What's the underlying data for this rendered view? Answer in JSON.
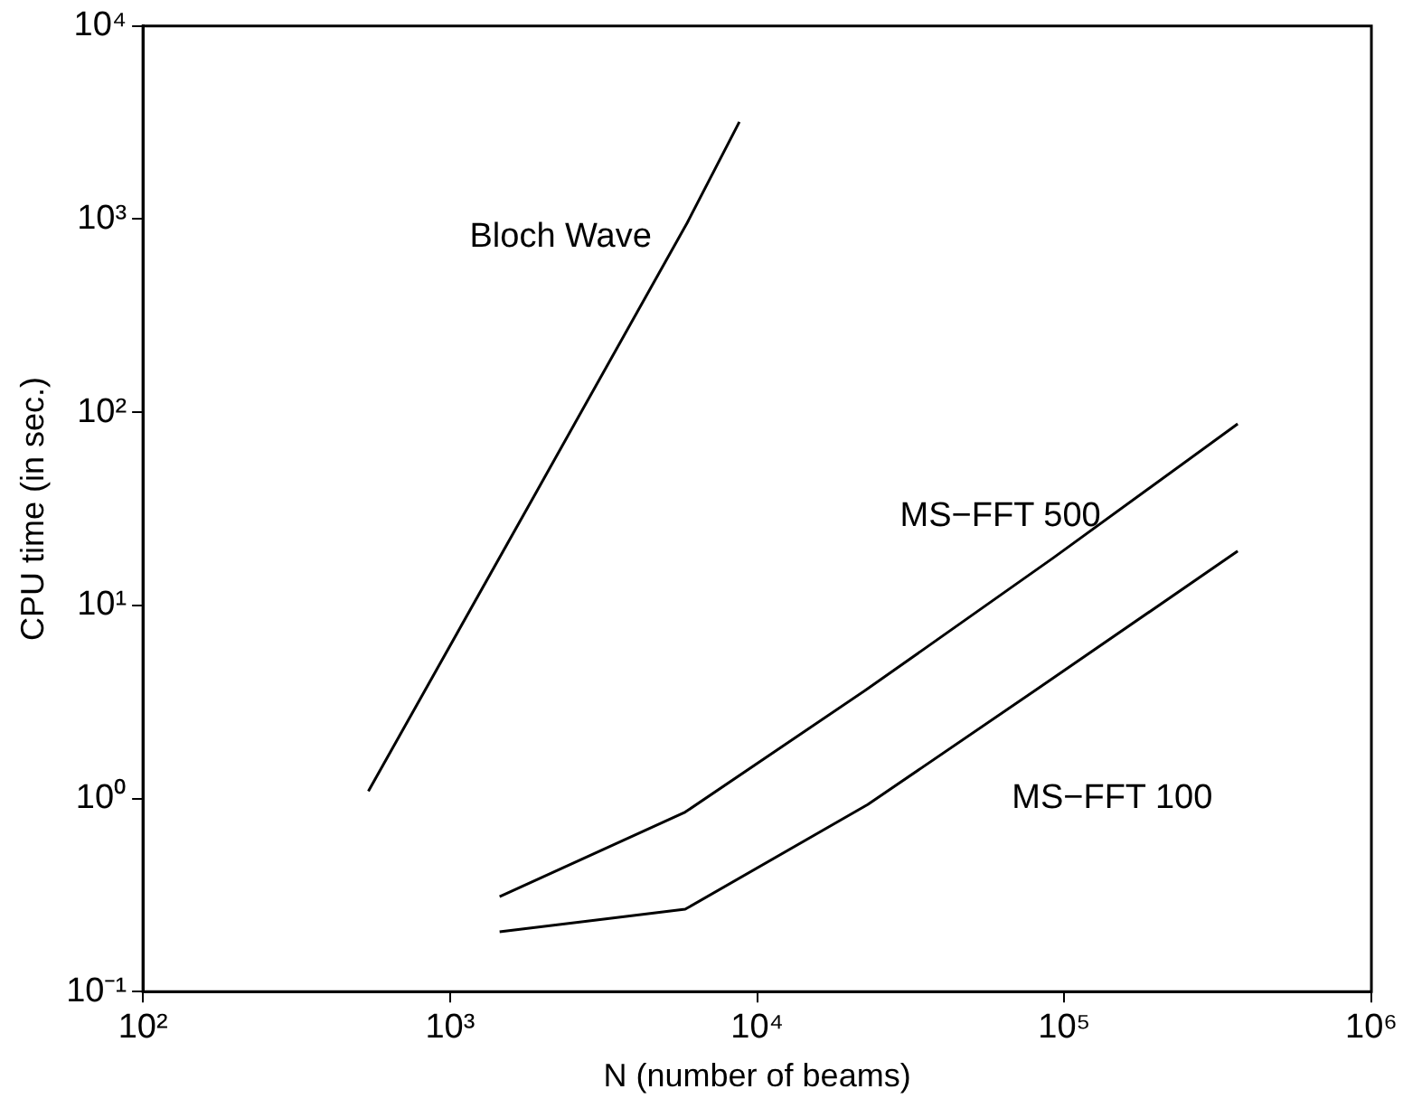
{
  "chart_data": {
    "type": "line",
    "xlabel": "N (number of beams)",
    "ylabel": "CPU time (in sec.)",
    "log": "xy",
    "grid": false,
    "legend": false,
    "marker": "none",
    "line_style": "solid",
    "xlim": [
      100,
      1000000
    ],
    "ylim": [
      0.1,
      10000
    ],
    "xticks": [
      {
        "value": 100,
        "label": "10²"
      },
      {
        "value": 1000,
        "label": "10³"
      },
      {
        "value": 10000,
        "label": "10⁴"
      },
      {
        "value": 100000,
        "label": "10⁵"
      },
      {
        "value": 1000000,
        "label": "10⁶"
      }
    ],
    "yticks": [
      {
        "value": 0.1,
        "label": "10⁻¹"
      },
      {
        "value": 1,
        "label": "10⁰"
      },
      {
        "value": 10,
        "label": "10¹"
      },
      {
        "value": 100,
        "label": "10²"
      },
      {
        "value": 1000,
        "label": "10³"
      },
      {
        "value": 10000,
        "label": "10⁴"
      }
    ],
    "series": [
      {
        "name": "Bloch Wave",
        "color": "#000000",
        "x": [
          542,
          1890,
          5920,
          8750
        ],
        "values": [
          1.09,
          37.5,
          958,
          3190
        ]
      },
      {
        "name": "MS−FFT 500",
        "color": "#000000",
        "x": [
          1450,
          5830,
          22900,
          92000,
          367000
        ],
        "values": [
          0.31,
          0.85,
          3.7,
          17.6,
          87
        ]
      },
      {
        "name": "MS−FFT 100",
        "color": "#000000",
        "x": [
          1450,
          5830,
          22900,
          92000,
          367000
        ],
        "values": [
          0.204,
          0.267,
          0.93,
          4.2,
          19.1
        ]
      }
    ]
  }
}
